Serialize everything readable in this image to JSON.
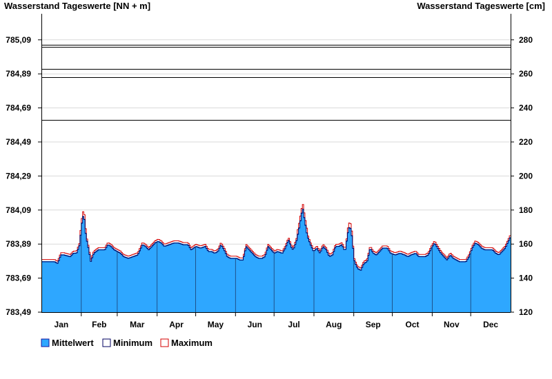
{
  "chart_data": {
    "type": "area",
    "title_left": "Wasserstand Tageswerte [NN + m]",
    "title_right": "Wasserstand Tageswerte [cm]",
    "y_left_ticks": [
      "783,49",
      "783,69",
      "783,89",
      "784,09",
      "784,29",
      "784,49",
      "784,69",
      "784,89",
      "785,09"
    ],
    "y_right_ticks": [
      "120",
      "140",
      "160",
      "180",
      "200",
      "220",
      "240",
      "260",
      "280"
    ],
    "ylim_cm": [
      120,
      282
    ],
    "months": [
      "Jan",
      "Feb",
      "Mar",
      "Apr",
      "May",
      "Jun",
      "Jul",
      "Aug",
      "Sep",
      "Oct",
      "Nov",
      "Dec"
    ],
    "days_in_year": 365,
    "reference_lines_cm": [
      233,
      258,
      263,
      276,
      277
    ],
    "grid": true,
    "legend_position": "bottom-left",
    "series": [
      {
        "name": "Mittelwert",
        "color": "#2ea7ff",
        "stroke": "#1515a0"
      },
      {
        "name": "Minimum",
        "color": "#ffffff",
        "stroke": "#000060"
      },
      {
        "name": "Maximum",
        "color": "#ffffff",
        "stroke": "#d40000"
      }
    ],
    "keypoints_mean": [
      [
        0,
        150
      ],
      [
        8,
        150
      ],
      [
        10,
        149
      ],
      [
        12,
        154
      ],
      [
        14,
        154
      ],
      [
        18,
        153
      ],
      [
        20,
        155
      ],
      [
        22,
        155
      ],
      [
        24,
        160
      ],
      [
        25,
        170
      ],
      [
        26,
        177
      ],
      [
        27,
        175
      ],
      [
        28,
        165
      ],
      [
        30,
        156
      ],
      [
        31,
        150
      ],
      [
        33,
        155
      ],
      [
        36,
        157
      ],
      [
        40,
        157
      ],
      [
        42,
        160
      ],
      [
        44,
        159
      ],
      [
        46,
        157
      ],
      [
        48,
        156
      ],
      [
        50,
        155
      ],
      [
        52,
        153
      ],
      [
        55,
        152
      ],
      [
        58,
        153
      ],
      [
        61,
        154
      ],
      [
        64,
        160
      ],
      [
        66,
        159
      ],
      [
        68,
        157
      ],
      [
        70,
        159
      ],
      [
        72,
        161
      ],
      [
        74,
        162
      ],
      [
        76,
        161
      ],
      [
        78,
        159
      ],
      [
        81,
        160
      ],
      [
        84,
        161
      ],
      [
        87,
        161
      ],
      [
        90,
        160
      ],
      [
        93,
        160
      ],
      [
        95,
        157
      ],
      [
        98,
        159
      ],
      [
        101,
        158
      ],
      [
        104,
        159
      ],
      [
        106,
        156
      ],
      [
        108,
        156
      ],
      [
        110,
        155
      ],
      [
        112,
        156
      ],
      [
        114,
        160
      ],
      [
        116,
        157
      ],
      [
        118,
        153
      ],
      [
        120,
        152
      ],
      [
        124,
        152
      ],
      [
        126,
        151
      ],
      [
        128,
        151
      ],
      [
        130,
        159
      ],
      [
        132,
        157
      ],
      [
        134,
        155
      ],
      [
        136,
        153
      ],
      [
        138,
        152
      ],
      [
        140,
        152
      ],
      [
        142,
        153
      ],
      [
        144,
        159
      ],
      [
        146,
        157
      ],
      [
        148,
        155
      ],
      [
        150,
        156
      ],
      [
        153,
        155
      ],
      [
        155,
        158
      ],
      [
        157,
        163
      ],
      [
        159,
        158
      ],
      [
        160,
        157
      ],
      [
        162,
        162
      ],
      [
        164,
        171
      ],
      [
        166,
        182
      ],
      [
        167,
        176
      ],
      [
        169,
        165
      ],
      [
        171,
        160
      ],
      [
        173,
        156
      ],
      [
        175,
        158
      ],
      [
        177,
        155
      ],
      [
        179,
        159
      ],
      [
        181,
        157
      ],
      [
        183,
        153
      ],
      [
        185,
        154
      ],
      [
        187,
        159
      ],
      [
        189,
        159
      ],
      [
        191,
        160
      ],
      [
        193,
        156
      ],
      [
        195,
        168
      ],
      [
        196,
        171
      ],
      [
        197,
        168
      ],
      [
        199,
        150
      ],
      [
        201,
        146
      ],
      [
        203,
        145
      ],
      [
        205,
        149
      ],
      [
        207,
        150
      ],
      [
        209,
        158
      ],
      [
        211,
        155
      ],
      [
        213,
        154
      ],
      [
        215,
        156
      ],
      [
        217,
        158
      ],
      [
        220,
        158
      ],
      [
        222,
        155
      ],
      [
        225,
        154
      ],
      [
        228,
        155
      ],
      [
        231,
        154
      ],
      [
        233,
        153
      ],
      [
        235,
        154
      ],
      [
        238,
        155
      ],
      [
        240,
        153
      ],
      [
        242,
        153
      ],
      [
        244,
        153
      ],
      [
        246,
        154
      ],
      [
        248,
        158
      ],
      [
        250,
        161
      ],
      [
        252,
        158
      ],
      [
        254,
        155
      ],
      [
        256,
        153
      ],
      [
        258,
        151
      ],
      [
        260,
        154
      ],
      [
        262,
        152
      ],
      [
        264,
        151
      ],
      [
        266,
        150
      ],
      [
        268,
        150
      ],
      [
        270,
        150
      ],
      [
        272,
        153
      ],
      [
        274,
        158
      ],
      [
        276,
        161
      ],
      [
        278,
        160
      ],
      [
        280,
        158
      ],
      [
        282,
        157
      ],
      [
        284,
        157
      ],
      [
        287,
        157
      ],
      [
        289,
        155
      ],
      [
        291,
        154
      ],
      [
        293,
        156
      ],
      [
        295,
        158
      ],
      [
        297,
        162
      ],
      [
        298,
        164
      ]
    ],
    "dip_indices": [
      21,
      84,
      103,
      127,
      156,
      174,
      246
    ]
  }
}
